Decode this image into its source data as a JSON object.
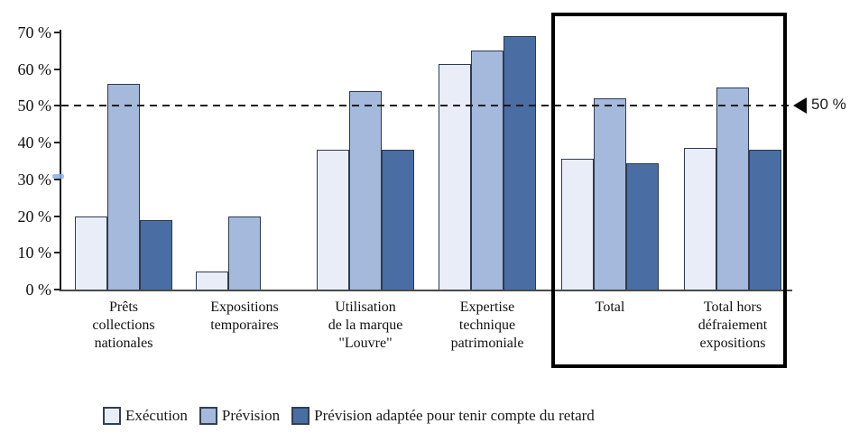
{
  "chart_data": {
    "type": "bar",
    "title": "",
    "xlabel": "",
    "ylabel": "",
    "ylim": [
      0,
      70
    ],
    "grid": false,
    "legend_position": "bottom",
    "yticks": [
      {
        "value": 70,
        "label": "70 %"
      },
      {
        "value": 60,
        "label": "60 %"
      },
      {
        "value": 50,
        "label": "50 %"
      },
      {
        "value": 40,
        "label": "40 %"
      },
      {
        "value": 30,
        "label": "30 %"
      },
      {
        "value": 20,
        "label": "20 %"
      },
      {
        "value": 10,
        "label": "10 %"
      },
      {
        "value": 0,
        "label": "0 %"
      }
    ],
    "categories": [
      [
        "Prêts",
        "collections",
        "nationales"
      ],
      [
        "Expositions",
        "temporaires"
      ],
      [
        "Utilisation",
        "de la marque",
        "\"Louvre\""
      ],
      [
        "Expertise",
        "technique",
        "patrimoniale"
      ],
      [
        "Total"
      ],
      [
        "Total hors",
        "défraiement",
        "expositions"
      ]
    ],
    "series": [
      {
        "name": "Exécution",
        "color": "#e8edf7",
        "values": [
          20,
          5,
          38,
          61.5,
          35.5,
          38.5
        ]
      },
      {
        "name": "Prévision",
        "color": "#a4b9db",
        "values": [
          56,
          20,
          54,
          65,
          52,
          55
        ]
      },
      {
        "name": "Prévision adaptée pour tenir compte du retard",
        "color": "#4a6da3",
        "values": [
          19,
          0,
          38,
          69,
          34.5,
          38
        ]
      }
    ],
    "reference_line": {
      "value": 50,
      "label": "50 %"
    },
    "highlight_box": {
      "from_category": "Total",
      "to_category": "Total hors défraiement expositions"
    },
    "colors": {
      "axis": "#1f1f1f",
      "reference_line": "#1d1d1d",
      "highlight_box": "#000000",
      "artifact_dash": "#8ab2e9"
    }
  }
}
